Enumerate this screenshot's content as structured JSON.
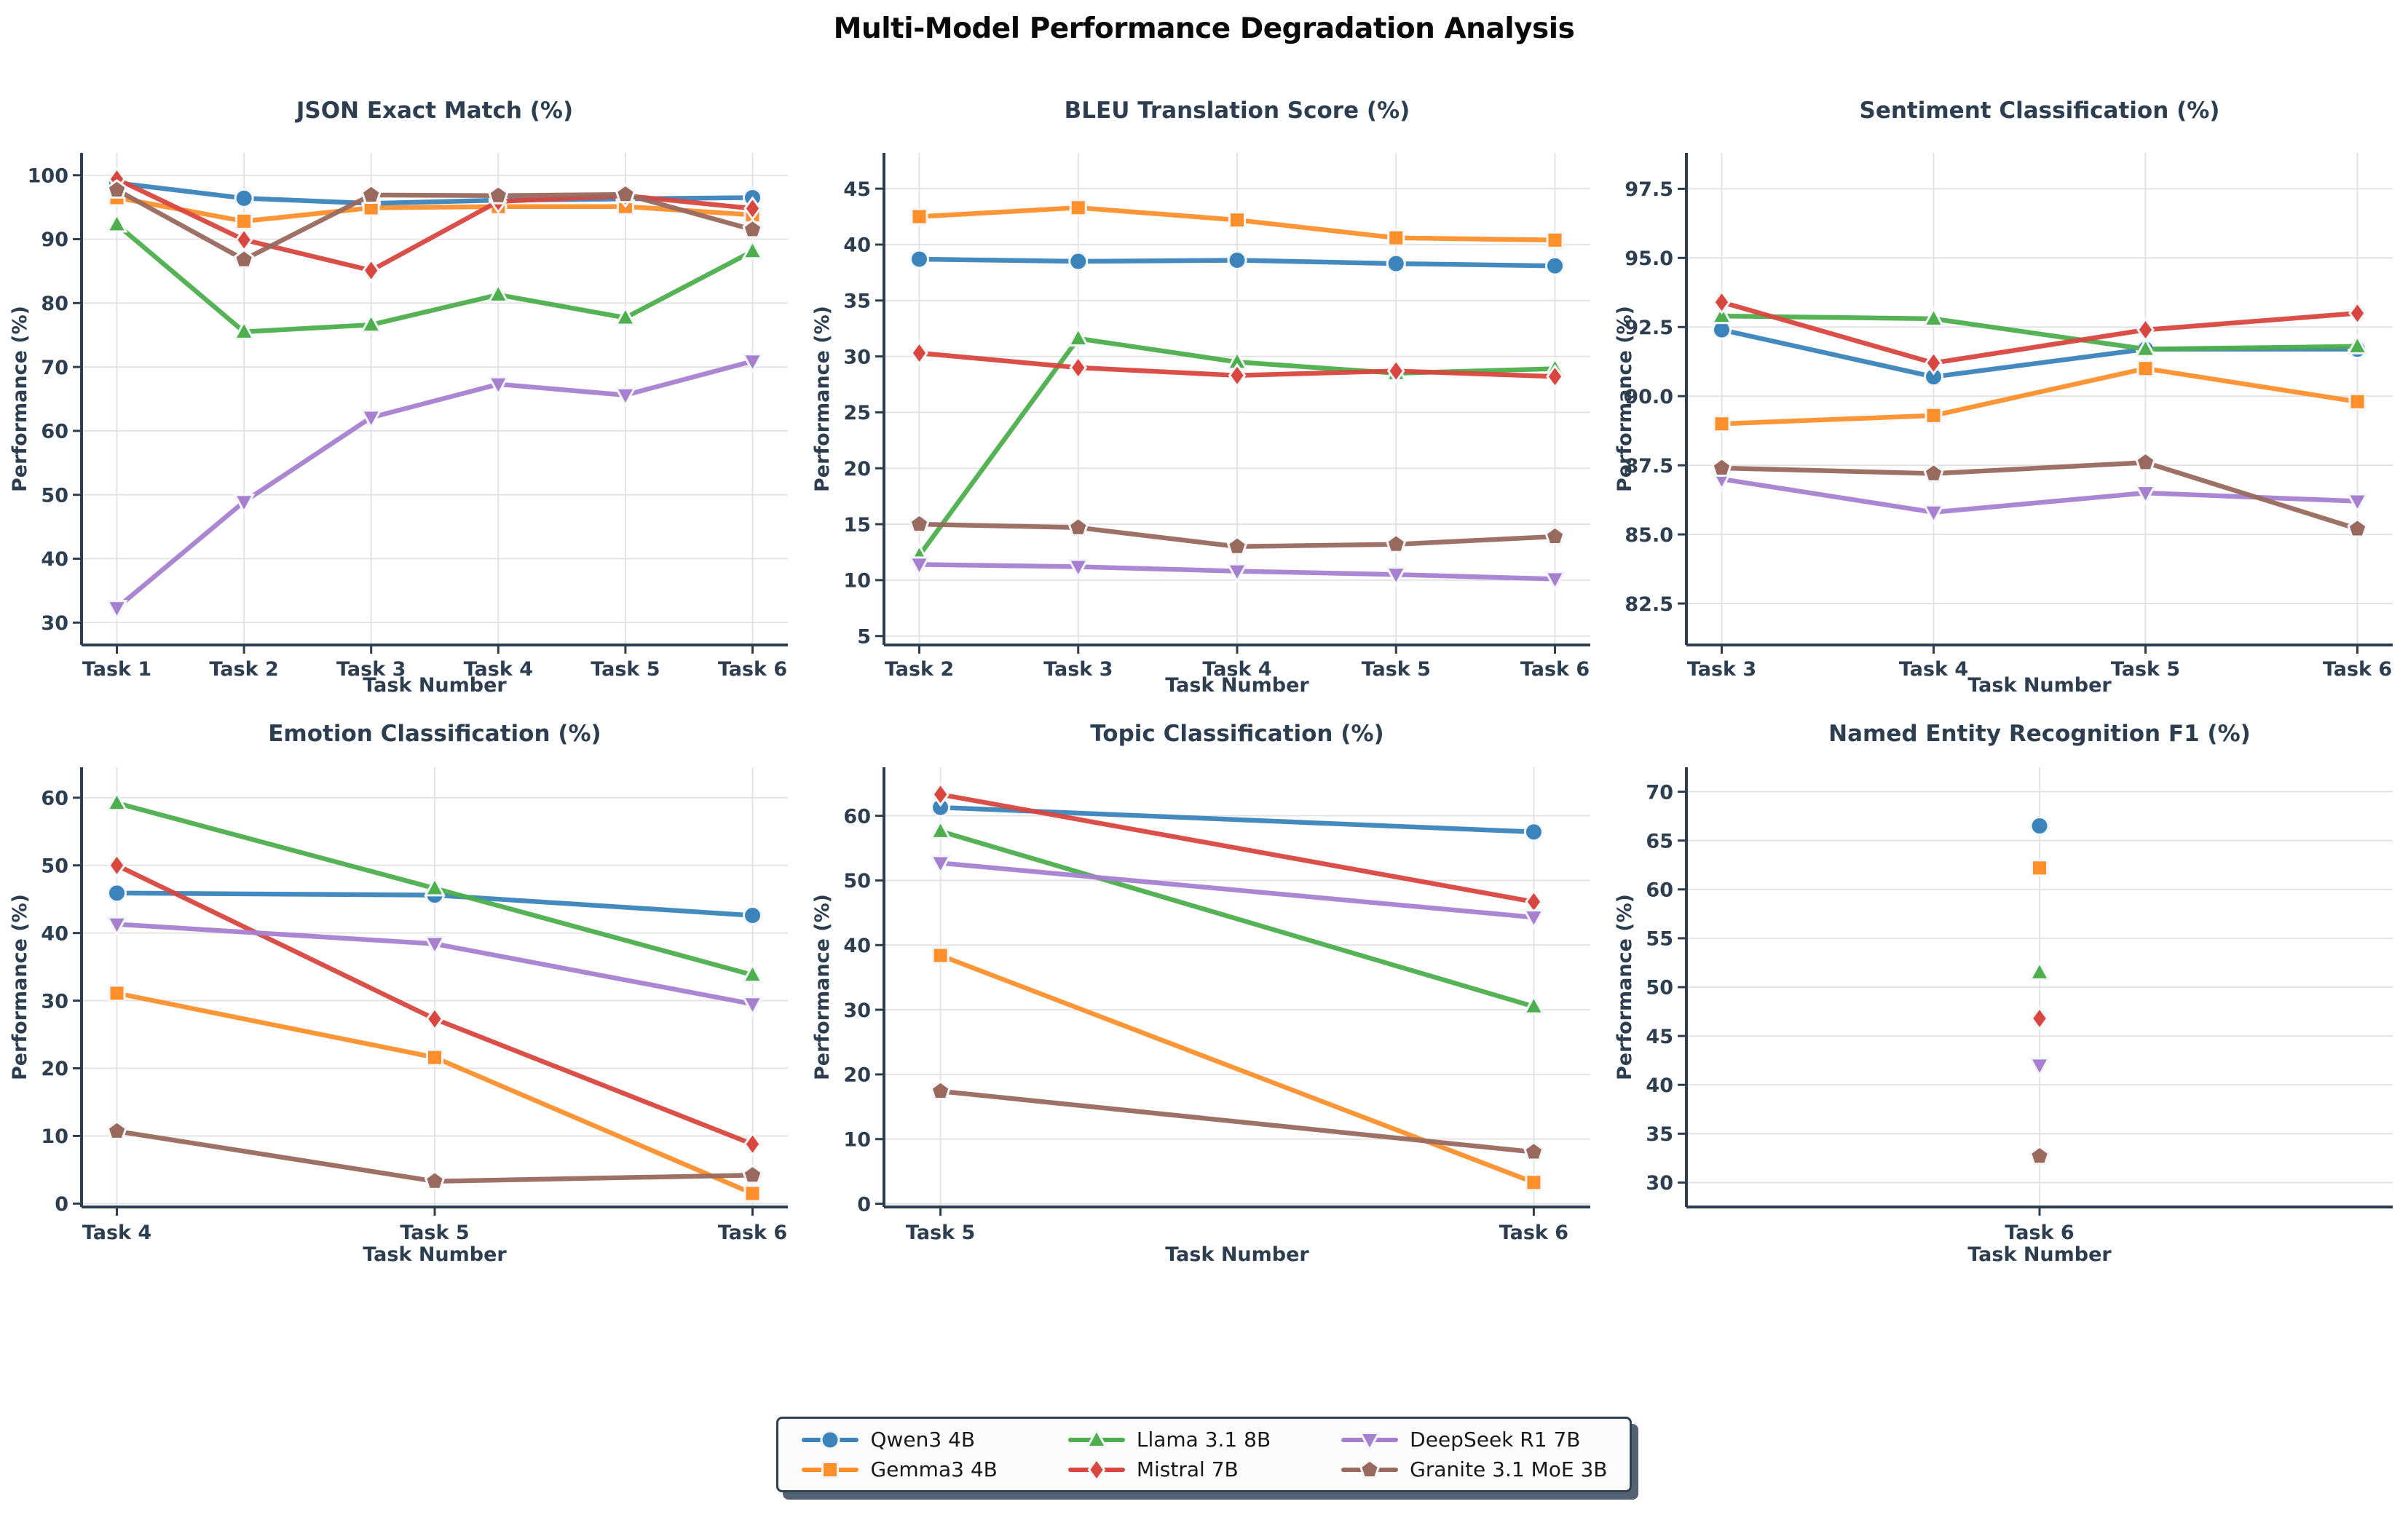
{
  "figure": {
    "title": "Multi-Model Performance Degradation Analysis"
  },
  "models": [
    {
      "name": "Qwen3 4B",
      "color": "#3a84bb",
      "marker": "circle"
    },
    {
      "name": "Gemma3 4B",
      "color": "#fe8f2b",
      "marker": "square"
    },
    {
      "name": "Llama 3.1 8B",
      "color": "#4cae4c",
      "marker": "triangle-up"
    },
    {
      "name": "Mistral 7B",
      "color": "#d9463f",
      "marker": "diamond"
    },
    {
      "name": "DeepSeek R1 7B",
      "color": "#a77fd0",
      "marker": "triangle-down"
    },
    {
      "name": "Granite 3.1 MoE 3B",
      "color": "#99695e",
      "marker": "pentagon"
    }
  ],
  "chart_data": [
    {
      "key": "json-exact-match",
      "type": "line",
      "title": "JSON Exact Match (%)",
      "xlabel": "Task Number",
      "ylabel": "Performance (%)",
      "categories": [
        "Task 1",
        "Task 2",
        "Task 3",
        "Task 4",
        "Task 5",
        "Task 6"
      ],
      "ylim": [
        26.5,
        103.5
      ],
      "yticks": [
        30,
        40,
        50,
        60,
        70,
        80,
        90,
        100
      ],
      "ytick_labels": [
        "30",
        "40",
        "50",
        "60",
        "70",
        "80",
        "90",
        "100"
      ],
      "grid": true,
      "legend_position": "figure-bottom",
      "series": [
        {
          "name": "Qwen3 4B",
          "values": [
            98.8,
            96.4,
            95.6,
            96.1,
            96.3,
            96.5
          ]
        },
        {
          "name": "Gemma3 4B",
          "values": [
            96.5,
            92.8,
            94.9,
            95.1,
            95.1,
            93.8
          ]
        },
        {
          "name": "Llama 3.1 8B",
          "values": [
            92.3,
            75.5,
            76.6,
            81.3,
            77.7,
            88.1
          ]
        },
        {
          "name": "Mistral 7B",
          "values": [
            99.4,
            89.9,
            85.1,
            95.9,
            96.8,
            94.8
          ]
        },
        {
          "name": "DeepSeek R1 7B",
          "values": [
            32.3,
            48.9,
            62.1,
            67.3,
            65.6,
            70.9
          ]
        },
        {
          "name": "Granite 3.1 MoE 3B",
          "values": [
            97.7,
            86.8,
            96.9,
            96.8,
            97.0,
            91.5
          ]
        }
      ]
    },
    {
      "key": "bleu-translation",
      "type": "line",
      "title": "BLEU Translation Score (%)",
      "xlabel": "Task Number",
      "ylabel": "Performance (%)",
      "categories": [
        "Task 2",
        "Task 3",
        "Task 4",
        "Task 5",
        "Task 6"
      ],
      "ylim": [
        4.2,
        48.2
      ],
      "yticks": [
        5,
        10,
        15,
        20,
        25,
        30,
        35,
        40,
        45
      ],
      "ytick_labels": [
        "5",
        "10",
        "15",
        "20",
        "25",
        "30",
        "35",
        "40",
        "45"
      ],
      "grid": true,
      "legend_position": "figure-bottom",
      "series": [
        {
          "name": "Qwen3 4B",
          "values": [
            38.7,
            38.5,
            38.6,
            38.3,
            38.1
          ]
        },
        {
          "name": "Gemma3 4B",
          "values": [
            42.5,
            43.3,
            42.2,
            40.6,
            40.4
          ]
        },
        {
          "name": "Llama 3.1 8B",
          "values": [
            12.2,
            31.6,
            29.5,
            28.5,
            28.9
          ]
        },
        {
          "name": "Mistral 7B",
          "values": [
            30.3,
            29.0,
            28.3,
            28.7,
            28.2
          ]
        },
        {
          "name": "DeepSeek R1 7B",
          "values": [
            11.4,
            11.2,
            10.8,
            10.5,
            10.1
          ]
        },
        {
          "name": "Granite 3.1 MoE 3B",
          "values": [
            15.0,
            14.7,
            13.0,
            13.2,
            13.9
          ]
        }
      ]
    },
    {
      "key": "sentiment-classification",
      "type": "line",
      "title": "Sentiment Classification (%)",
      "xlabel": "Task Number",
      "ylabel": "Performance (%)",
      "categories": [
        "Task 3",
        "Task 4",
        "Task 5",
        "Task 6"
      ],
      "ylim": [
        81.0,
        98.8
      ],
      "yticks": [
        82.5,
        85.0,
        87.5,
        90.0,
        92.5,
        95.0,
        97.5
      ],
      "ytick_labels": [
        "82.5",
        "85.0",
        "87.5",
        "90.0",
        "92.5",
        "95.0",
        "97.5"
      ],
      "grid": true,
      "legend_position": "figure-bottom",
      "series": [
        {
          "name": "Qwen3 4B",
          "values": [
            92.4,
            90.7,
            91.7,
            91.7
          ]
        },
        {
          "name": "Gemma3 4B",
          "values": [
            89.0,
            89.3,
            91.0,
            89.8
          ]
        },
        {
          "name": "Llama 3.1 8B",
          "values": [
            92.9,
            92.8,
            91.7,
            91.8
          ]
        },
        {
          "name": "Mistral 7B",
          "values": [
            93.4,
            91.2,
            92.4,
            93.0
          ]
        },
        {
          "name": "DeepSeek R1 7B",
          "values": [
            87.0,
            85.8,
            86.5,
            86.2
          ]
        },
        {
          "name": "Granite 3.1 MoE 3B",
          "values": [
            87.4,
            87.2,
            87.6,
            85.2
          ]
        }
      ]
    },
    {
      "key": "emotion-classification",
      "type": "line",
      "title": "Emotion Classification (%)",
      "xlabel": "Task Number",
      "ylabel": "Performance (%)",
      "categories": [
        "Task 4",
        "Task 5",
        "Task 6"
      ],
      "ylim": [
        -0.5,
        64.5
      ],
      "yticks": [
        0,
        10,
        20,
        30,
        40,
        50,
        60
      ],
      "ytick_labels": [
        "0",
        "10",
        "20",
        "30",
        "40",
        "50",
        "60"
      ],
      "grid": true,
      "legend_position": "figure-bottom",
      "series": [
        {
          "name": "Qwen3 4B",
          "values": [
            45.9,
            45.6,
            42.6
          ]
        },
        {
          "name": "Gemma3 4B",
          "values": [
            31.1,
            21.6,
            1.5
          ]
        },
        {
          "name": "Llama 3.1 8B",
          "values": [
            59.2,
            46.6,
            33.8
          ]
        },
        {
          "name": "Mistral 7B",
          "values": [
            50.0,
            27.3,
            8.8
          ]
        },
        {
          "name": "DeepSeek R1 7B",
          "values": [
            41.3,
            38.4,
            29.5
          ]
        },
        {
          "name": "Granite 3.1 MoE 3B",
          "values": [
            10.7,
            3.3,
            4.2
          ]
        }
      ]
    },
    {
      "key": "topic-classification",
      "type": "line",
      "title": "Topic Classification (%)",
      "xlabel": "Task Number",
      "ylabel": "Performance (%)",
      "categories": [
        "Task 5",
        "Task 6"
      ],
      "ylim": [
        -0.5,
        67.5
      ],
      "yticks": [
        0,
        10,
        20,
        30,
        40,
        50,
        60
      ],
      "ytick_labels": [
        "0",
        "10",
        "20",
        "30",
        "40",
        "50",
        "60"
      ],
      "grid": true,
      "legend_position": "figure-bottom",
      "series": [
        {
          "name": "Qwen3 4B",
          "values": [
            61.3,
            57.5
          ]
        },
        {
          "name": "Gemma3 4B",
          "values": [
            38.4,
            3.3
          ]
        },
        {
          "name": "Llama 3.1 8B",
          "values": [
            57.6,
            30.5
          ]
        },
        {
          "name": "Mistral 7B",
          "values": [
            63.3,
            46.7
          ]
        },
        {
          "name": "DeepSeek R1 7B",
          "values": [
            52.7,
            44.3
          ]
        },
        {
          "name": "Granite 3.1 MoE 3B",
          "values": [
            17.4,
            8.0
          ]
        }
      ]
    },
    {
      "key": "named-entity-recognition-f1",
      "type": "scatter",
      "title": "Named Entity Recognition F1 (%)",
      "xlabel": "Task Number",
      "ylabel": "Performance (%)",
      "categories": [
        "Task 6"
      ],
      "ylim": [
        27.5,
        72.5
      ],
      "yticks": [
        30,
        35,
        40,
        45,
        50,
        55,
        60,
        65,
        70
      ],
      "ytick_labels": [
        "30",
        "35",
        "40",
        "45",
        "50",
        "55",
        "60",
        "65",
        "70"
      ],
      "grid": true,
      "legend_position": "figure-bottom",
      "series": [
        {
          "name": "Qwen3 4B",
          "values": [
            66.5
          ]
        },
        {
          "name": "Gemma3 4B",
          "values": [
            62.2
          ]
        },
        {
          "name": "Llama 3.1 8B",
          "values": [
            51.5
          ]
        },
        {
          "name": "Mistral 7B",
          "values": [
            46.8
          ]
        },
        {
          "name": "DeepSeek R1 7B",
          "values": [
            42.0
          ]
        },
        {
          "name": "Granite 3.1 MoE 3B",
          "values": [
            32.7
          ]
        }
      ]
    }
  ]
}
